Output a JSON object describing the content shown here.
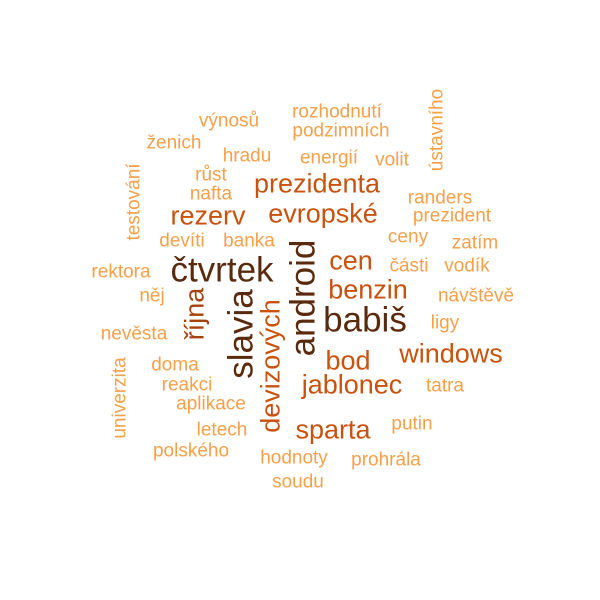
{
  "colors": {
    "level1": "#F6A04A",
    "level2": "#E8842A",
    "level3": "#C9520E",
    "level4": "#A5410C",
    "level5": "#5A2A0E"
  },
  "words": [
    {
      "text": "rozhodnutí",
      "level": 1
    },
    {
      "text": "výnosů",
      "level": 1
    },
    {
      "text": "podzimních",
      "level": 1
    },
    {
      "text": "ženich",
      "level": 1
    },
    {
      "text": "ústavního",
      "level": 1
    },
    {
      "text": "hradu",
      "level": 1
    },
    {
      "text": "energií",
      "level": 1
    },
    {
      "text": "volit",
      "level": 1
    },
    {
      "text": "růst",
      "level": 1
    },
    {
      "text": "testování",
      "level": 1
    },
    {
      "text": "nafta",
      "level": 1
    },
    {
      "text": "prezidenta",
      "level": 3
    },
    {
      "text": "randers",
      "level": 1
    },
    {
      "text": "rezerv",
      "level": 3
    },
    {
      "text": "evropské",
      "level": 3
    },
    {
      "text": "prezident",
      "level": 1
    },
    {
      "text": "devíti",
      "level": 1
    },
    {
      "text": "banka",
      "level": 1
    },
    {
      "text": "ceny",
      "level": 1
    },
    {
      "text": "zatím",
      "level": 1
    },
    {
      "text": "rektora",
      "level": 1
    },
    {
      "text": "čtvrtek",
      "level": 5
    },
    {
      "text": "cen",
      "level": 3
    },
    {
      "text": "části",
      "level": 1
    },
    {
      "text": "vodík",
      "level": 1
    },
    {
      "text": "android",
      "level": 5
    },
    {
      "text": "něj",
      "level": 1
    },
    {
      "text": "benzin",
      "level": 3
    },
    {
      "text": "návštěvě",
      "level": 1
    },
    {
      "text": "října",
      "level": 4
    },
    {
      "text": "slavia",
      "level": 5
    },
    {
      "text": "babiš",
      "level": 5
    },
    {
      "text": "ligy",
      "level": 1
    },
    {
      "text": "nevěsta",
      "level": 1
    },
    {
      "text": "devizových",
      "level": 3
    },
    {
      "text": "bod",
      "level": 3
    },
    {
      "text": "windows",
      "level": 3
    },
    {
      "text": "univerzita",
      "level": 1
    },
    {
      "text": "doma",
      "level": 1
    },
    {
      "text": "jablonec",
      "level": 3
    },
    {
      "text": "reakci",
      "level": 1
    },
    {
      "text": "tatra",
      "level": 1
    },
    {
      "text": "aplikace",
      "level": 1
    },
    {
      "text": "sparta",
      "level": 3
    },
    {
      "text": "putin",
      "level": 1
    },
    {
      "text": "letech",
      "level": 1
    },
    {
      "text": "polského",
      "level": 1
    },
    {
      "text": "hodnoty",
      "level": 1
    },
    {
      "text": "prohrála",
      "level": 1
    },
    {
      "text": "soudu",
      "level": 1
    }
  ]
}
